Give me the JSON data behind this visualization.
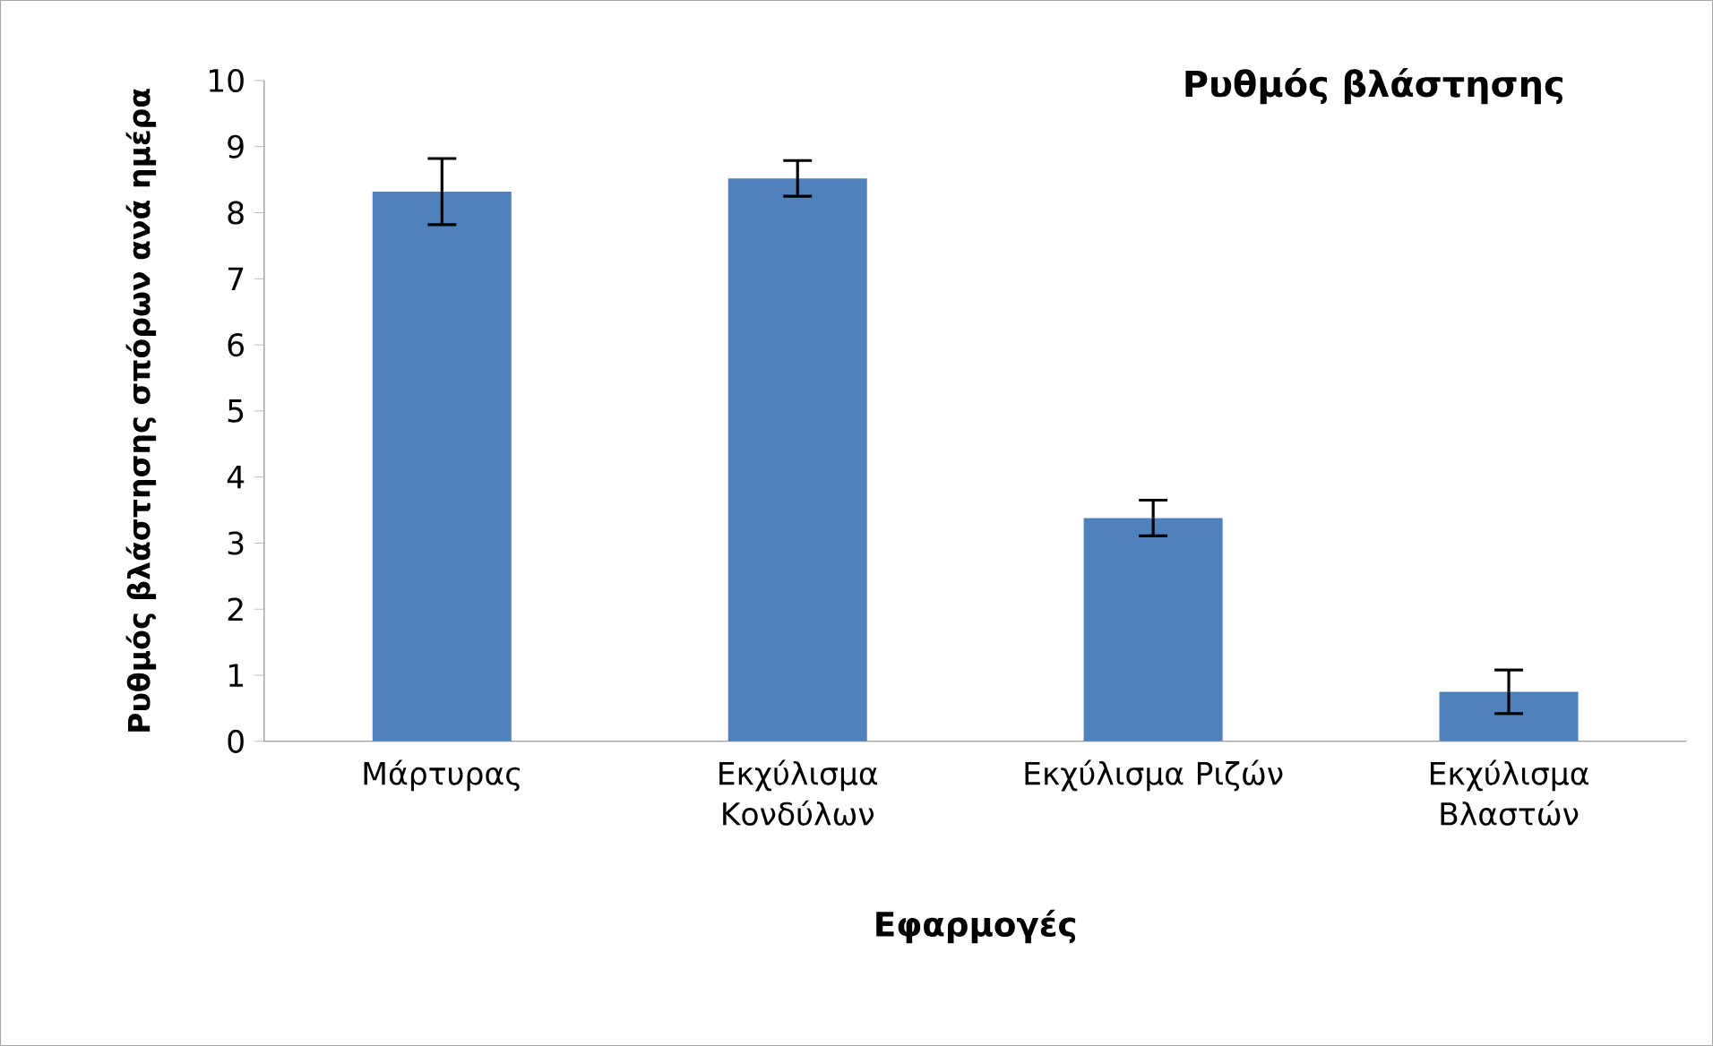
{
  "chart_data": {
    "type": "bar",
    "title": "Ρυθμός βλάστησης",
    "xlabel": "Εφαρμογές",
    "ylabel": "Ρυθμός βλάστησης σπόρων ανά ημέρα",
    "categories": [
      "Μάρτυρας",
      "Εκχύλισμα Κονδύλων",
      "Εκχύλισμα Ριζών",
      "Εκχύλισμα Βλαστών"
    ],
    "values": [
      8.32,
      8.52,
      3.38,
      0.75
    ],
    "errors": [
      0.5,
      0.27,
      0.27,
      0.33
    ],
    "color": "#4f81bd",
    "ylim": [
      0,
      10
    ],
    "yticks": [
      0,
      1,
      2,
      3,
      4,
      5,
      6,
      7,
      8,
      9,
      10
    ],
    "grid": false
  }
}
